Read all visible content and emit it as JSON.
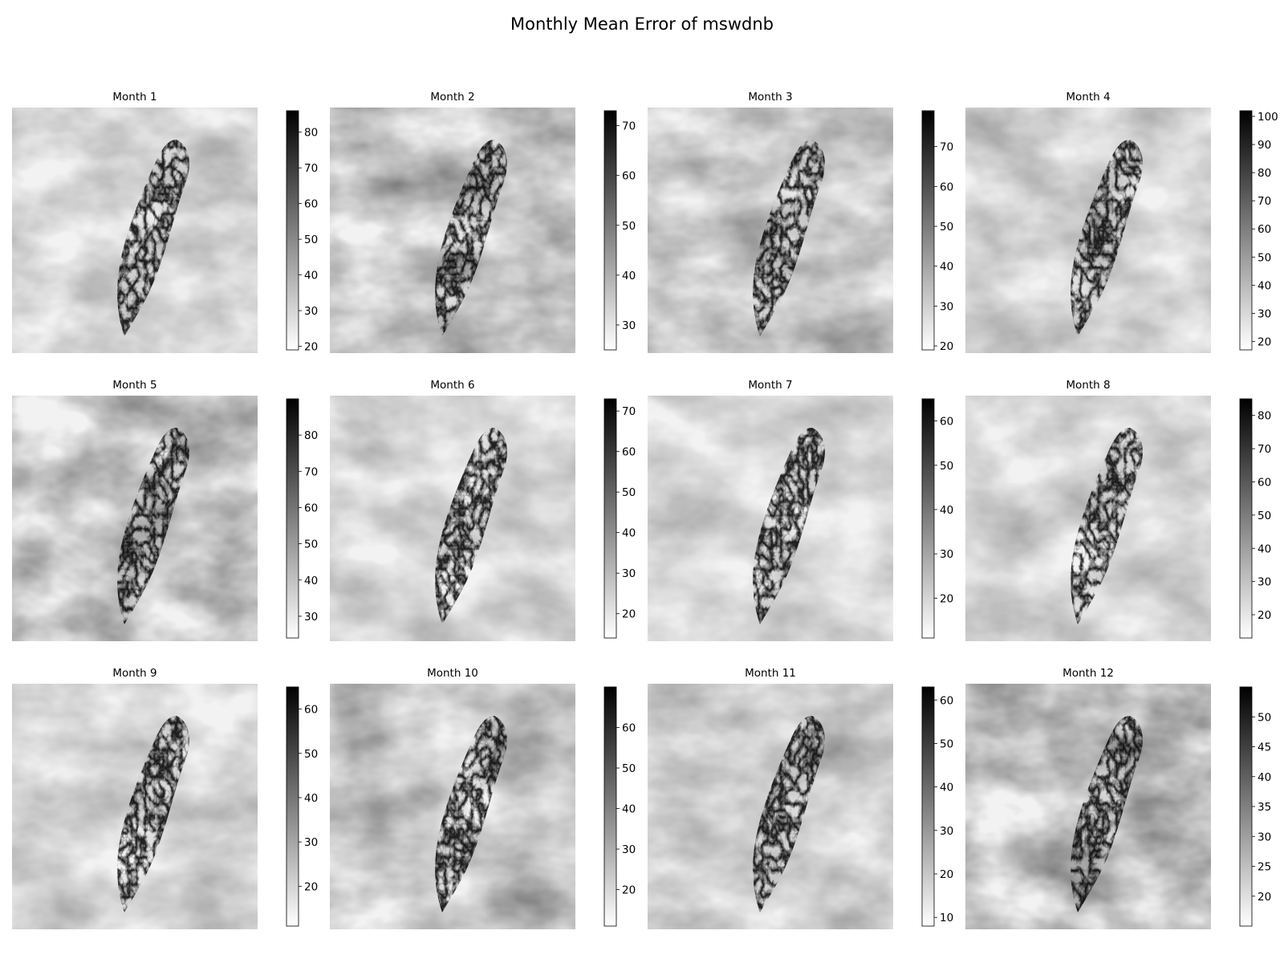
{
  "figure": {
    "title": "Monthly Mean Error of mswdnb"
  },
  "chart_data": {
    "type": "heatmap",
    "title": "Monthly Mean Error of mswdnb",
    "colormap": "Greys",
    "colors": {
      "low": "#ffffff",
      "high": "#000000"
    },
    "panels": [
      {
        "title": "Month 1",
        "vmin": 19,
        "vmax": 86,
        "ticks": [
          20,
          30,
          40,
          50,
          60,
          70,
          80
        ]
      },
      {
        "title": "Month 2",
        "vmin": 25,
        "vmax": 73,
        "ticks": [
          30,
          40,
          50,
          60,
          70
        ]
      },
      {
        "title": "Month 3",
        "vmin": 19,
        "vmax": 79,
        "ticks": [
          20,
          30,
          40,
          50,
          60,
          70
        ]
      },
      {
        "title": "Month 4",
        "vmin": 17,
        "vmax": 102,
        "ticks": [
          20,
          30,
          40,
          50,
          60,
          70,
          80,
          90,
          100
        ]
      },
      {
        "title": "Month 5",
        "vmin": 24,
        "vmax": 90,
        "ticks": [
          30,
          40,
          50,
          60,
          70,
          80
        ]
      },
      {
        "title": "Month 6",
        "vmin": 14,
        "vmax": 73,
        "ticks": [
          20,
          30,
          40,
          50,
          60,
          70
        ]
      },
      {
        "title": "Month 7",
        "vmin": 11,
        "vmax": 65,
        "ticks": [
          20,
          30,
          40,
          50,
          60
        ]
      },
      {
        "title": "Month 8",
        "vmin": 13,
        "vmax": 85,
        "ticks": [
          20,
          30,
          40,
          50,
          60,
          70,
          80
        ]
      },
      {
        "title": "Month 9",
        "vmin": 11,
        "vmax": 65,
        "ticks": [
          20,
          30,
          40,
          50,
          60
        ]
      },
      {
        "title": "Month 10",
        "vmin": 11,
        "vmax": 70,
        "ticks": [
          20,
          30,
          40,
          50,
          60
        ]
      },
      {
        "title": "Month 11",
        "vmin": 8,
        "vmax": 63,
        "ticks": [
          10,
          20,
          30,
          40,
          50,
          60
        ]
      },
      {
        "title": "Month 12",
        "vmin": 15,
        "vmax": 55,
        "ticks": [
          20,
          25,
          30,
          35,
          40,
          45,
          50
        ]
      }
    ]
  }
}
